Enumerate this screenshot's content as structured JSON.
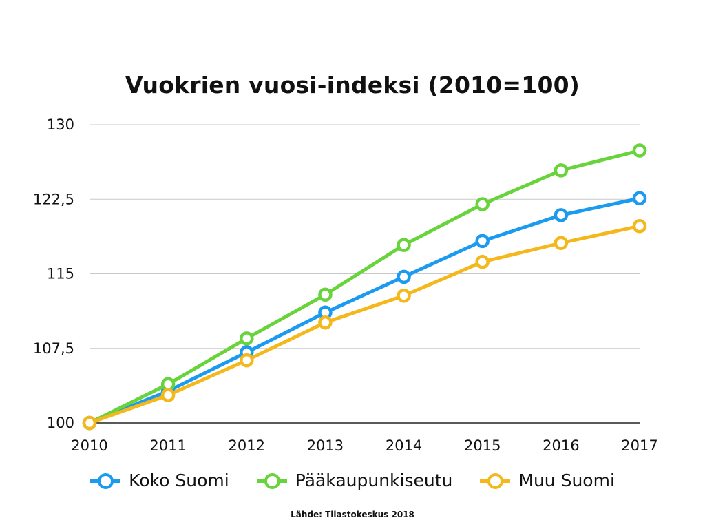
{
  "chart_data": {
    "type": "line",
    "title": "Vuokrien vuosi-indeksi (2010=100)",
    "categories": [
      "2010",
      "2011",
      "2012",
      "2013",
      "2014",
      "2015",
      "2016",
      "2017"
    ],
    "ylim": [
      100,
      130
    ],
    "yticks": [
      "100",
      "107,5",
      "115",
      "122,5",
      "130"
    ],
    "ytick_values": [
      100,
      107.5,
      115,
      122.5,
      130
    ],
    "grid": true,
    "legend_position": "bottom",
    "series": [
      {
        "name": "Koko Suomi",
        "color": "#1a9bf0",
        "values": [
          100,
          103.2,
          107.1,
          111.1,
          114.7,
          118.3,
          120.9,
          122.6
        ]
      },
      {
        "name": "Pääkaupunkiseutu",
        "color": "#66d43a",
        "values": [
          100,
          103.9,
          108.5,
          112.9,
          117.9,
          122.0,
          125.4,
          127.4
        ]
      },
      {
        "name": "Muu Suomi",
        "color": "#f5b81c",
        "values": [
          100,
          102.8,
          106.3,
          110.1,
          112.8,
          116.2,
          118.1,
          119.8
        ]
      }
    ],
    "source": "Lähde: Tilastokeskus 2018"
  }
}
